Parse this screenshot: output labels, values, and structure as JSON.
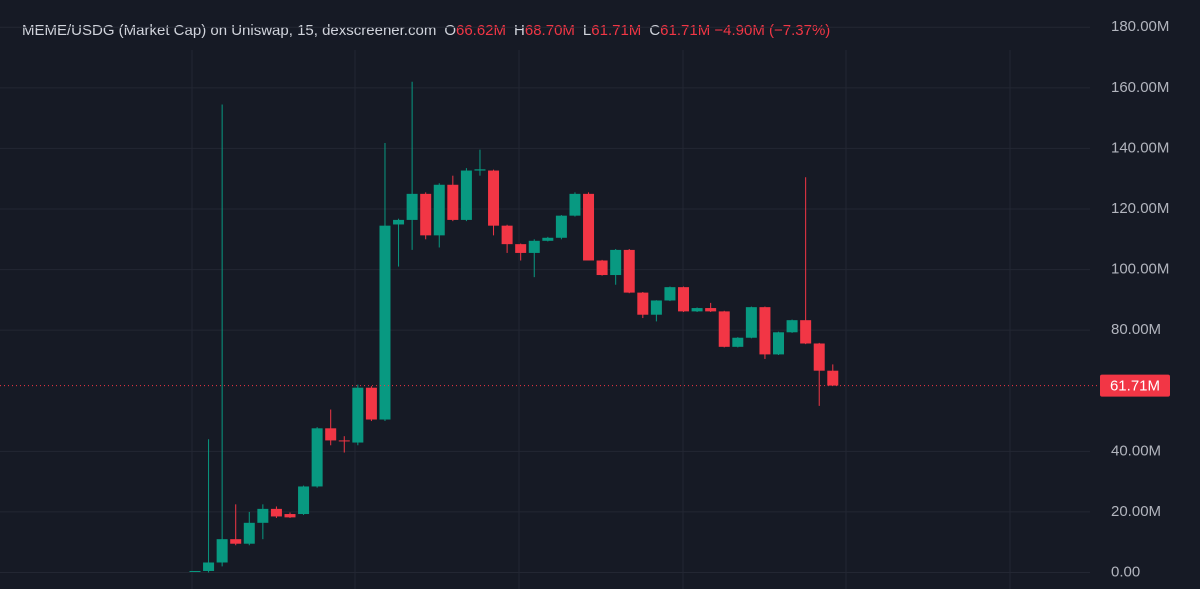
{
  "header": {
    "title": "MEME/USDG (Market Cap) on Uniswap, 15, dexscreener.com",
    "ohlc": [
      {
        "key": "O",
        "value": "66.62M"
      },
      {
        "key": "H",
        "value": "68.70M"
      },
      {
        "key": "L",
        "value": "61.71M"
      },
      {
        "key": "C",
        "value": "61.71M"
      }
    ],
    "change": "−4.90M (−7.37%)"
  },
  "chart_data": {
    "type": "candlestick",
    "open": [
      0.3,
      0.5,
      3.3,
      11,
      9.5,
      16.4,
      21,
      19.3,
      19.3,
      28.4,
      47.6,
      43.6,
      42.9,
      61,
      50.5,
      114.9,
      116.4,
      125,
      111.3,
      128,
      116.4,
      132.7,
      132.7,
      114.5,
      108.4,
      105.5,
      109.5,
      110.5,
      117.8,
      125,
      103,
      98.2,
      106.5,
      92.4,
      85.1,
      89.8,
      94.2,
      86.2,
      87.3,
      86.2,
      74.5,
      77.5,
      87.6,
      72,
      79.3,
      83.3,
      75.6,
      66.62
    ],
    "high": [
      0.5,
      44,
      154.5,
      22.5,
      20,
      22.5,
      21.8,
      19.8,
      28.7,
      48,
      53.8,
      45,
      62,
      61.5,
      141.8,
      116.8,
      162,
      125.5,
      128.5,
      131,
      133.5,
      139.6,
      133,
      114.8,
      108.6,
      110,
      110.8,
      118,
      125.5,
      125.5,
      103.2,
      106.8,
      106.8,
      92.6,
      89.9,
      94.4,
      94.4,
      87.5,
      89,
      86.4,
      77.7,
      87.8,
      87.8,
      79.5,
      83.5,
      130.5,
      75.8,
      68.7
    ],
    "low": [
      0.2,
      0,
      2,
      9,
      9,
      11,
      18,
      18,
      19,
      28,
      42,
      39.6,
      42,
      50,
      50,
      101,
      106.5,
      110,
      107.3,
      116,
      116,
      131,
      111.3,
      105.5,
      103,
      97.5,
      109.3,
      110,
      117.5,
      103,
      98,
      95,
      92.2,
      84,
      82.9,
      89.6,
      86,
      86,
      86,
      74.3,
      74.3,
      77.3,
      70.5,
      71.8,
      79.1,
      75.4,
      55,
      61.71
    ],
    "close": [
      0.5,
      3.3,
      11,
      9.5,
      16.4,
      21,
      18.5,
      18.2,
      28.4,
      47.6,
      43.6,
      43.3,
      61,
      50.5,
      114.5,
      116.4,
      125,
      111.3,
      128,
      116.4,
      132.7,
      133.1,
      114.5,
      108.4,
      105.5,
      109.5,
      110.5,
      117.8,
      125,
      103,
      98.2,
      106.5,
      92.4,
      85.1,
      89.8,
      94.2,
      86.2,
      87.3,
      86.2,
      74.5,
      77.5,
      87.6,
      72,
      79.3,
      83.3,
      75.6,
      66.62,
      61.71
    ],
    "up_color": "#089981",
    "down_color": "#f23645",
    "ylim": [
      -5.45,
      189
    ],
    "yticks": [
      {
        "value": 0,
        "label": "0.00"
      },
      {
        "value": 20,
        "label": "20.00M"
      },
      {
        "value": 40,
        "label": "40.00M"
      },
      {
        "value": 80,
        "label": "80.00M"
      },
      {
        "value": 100,
        "label": "100.00M"
      },
      {
        "value": 120,
        "label": "120.00M"
      },
      {
        "value": 140,
        "label": "140.00M"
      },
      {
        "value": 160,
        "label": "160.00M"
      },
      {
        "value": 180,
        "label": "180.00M"
      }
    ],
    "grid": true,
    "price_line": {
      "value": 61.71,
      "label": "61.71M"
    }
  }
}
